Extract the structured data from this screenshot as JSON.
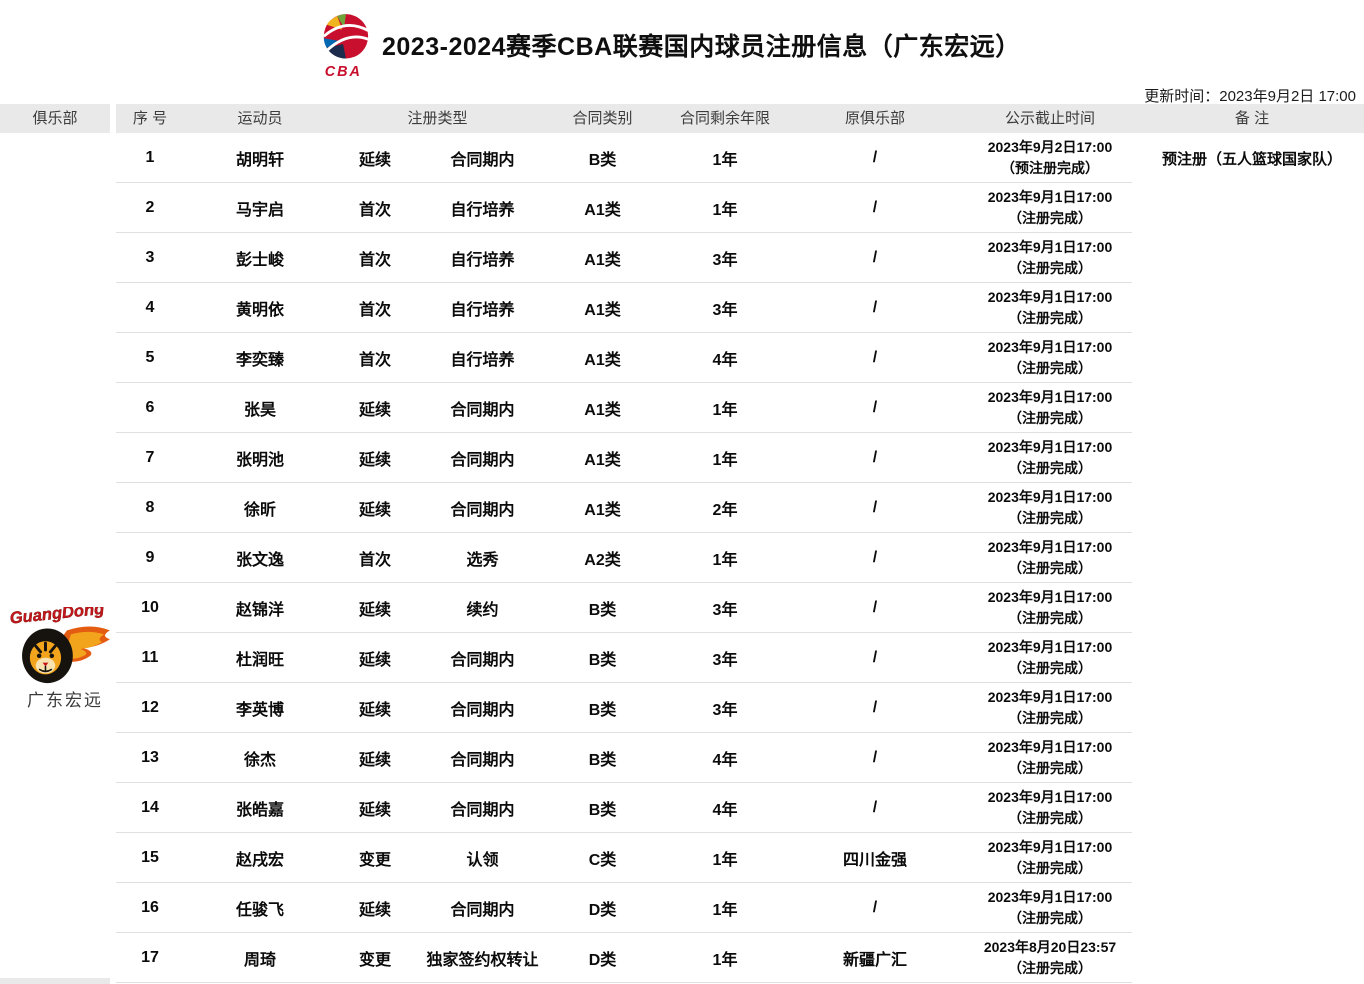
{
  "header": {
    "title": "2023-2024赛季CBA联赛国内球员注册信息（广东宏远）",
    "update_time": "更新时间：2023年9月2日 17:00",
    "cba_wordmark": "CBA"
  },
  "club": {
    "name": "广东宏远",
    "logo_wordmark": "GuangDong"
  },
  "table": {
    "headers": {
      "club": "俱乐部",
      "no": "序 号",
      "player": "运动员",
      "reg_type": "注册类型",
      "contract_class": "合同类别",
      "years_left": "合同剩余年限",
      "former_club": "原俱乐部",
      "deadline": "公示截止时间",
      "remark": "备 注"
    },
    "rows": [
      {
        "no": "1",
        "player": "胡明轩",
        "reg_type_a": "延续",
        "reg_type_b": "合同期内",
        "contract_class": "B类",
        "years_left": "1年",
        "former_club": "/",
        "deadline_line1": "2023年9月2日17:00",
        "deadline_line2": "（预注册完成）",
        "remark": "预注册（五人篮球国家队）"
      },
      {
        "no": "2",
        "player": "马宇启",
        "reg_type_a": "首次",
        "reg_type_b": "自行培养",
        "contract_class": "A1类",
        "years_left": "1年",
        "former_club": "/",
        "deadline_line1": "2023年9月1日17:00",
        "deadline_line2": "（注册完成）",
        "remark": ""
      },
      {
        "no": "3",
        "player": "彭士峻",
        "reg_type_a": "首次",
        "reg_type_b": "自行培养",
        "contract_class": "A1类",
        "years_left": "3年",
        "former_club": "/",
        "deadline_line1": "2023年9月1日17:00",
        "deadline_line2": "（注册完成）",
        "remark": ""
      },
      {
        "no": "4",
        "player": "黄明依",
        "reg_type_a": "首次",
        "reg_type_b": "自行培养",
        "contract_class": "A1类",
        "years_left": "3年",
        "former_club": "/",
        "deadline_line1": "2023年9月1日17:00",
        "deadline_line2": "（注册完成）",
        "remark": ""
      },
      {
        "no": "5",
        "player": "李奕臻",
        "reg_type_a": "首次",
        "reg_type_b": "自行培养",
        "contract_class": "A1类",
        "years_left": "4年",
        "former_club": "/",
        "deadline_line1": "2023年9月1日17:00",
        "deadline_line2": "（注册完成）",
        "remark": ""
      },
      {
        "no": "6",
        "player": "张昊",
        "reg_type_a": "延续",
        "reg_type_b": "合同期内",
        "contract_class": "A1类",
        "years_left": "1年",
        "former_club": "/",
        "deadline_line1": "2023年9月1日17:00",
        "deadline_line2": "（注册完成）",
        "remark": ""
      },
      {
        "no": "7",
        "player": "张明池",
        "reg_type_a": "延续",
        "reg_type_b": "合同期内",
        "contract_class": "A1类",
        "years_left": "1年",
        "former_club": "/",
        "deadline_line1": "2023年9月1日17:00",
        "deadline_line2": "（注册完成）",
        "remark": ""
      },
      {
        "no": "8",
        "player": "徐昕",
        "reg_type_a": "延续",
        "reg_type_b": "合同期内",
        "contract_class": "A1类",
        "years_left": "2年",
        "former_club": "/",
        "deadline_line1": "2023年9月1日17:00",
        "deadline_line2": "（注册完成）",
        "remark": ""
      },
      {
        "no": "9",
        "player": "张文逸",
        "reg_type_a": "首次",
        "reg_type_b": "选秀",
        "contract_class": "A2类",
        "years_left": "1年",
        "former_club": "/",
        "deadline_line1": "2023年9月1日17:00",
        "deadline_line2": "（注册完成）",
        "remark": ""
      },
      {
        "no": "10",
        "player": "赵锦洋",
        "reg_type_a": "延续",
        "reg_type_b": "续约",
        "contract_class": "B类",
        "years_left": "3年",
        "former_club": "/",
        "deadline_line1": "2023年9月1日17:00",
        "deadline_line2": "（注册完成）",
        "remark": ""
      },
      {
        "no": "11",
        "player": "杜润旺",
        "reg_type_a": "延续",
        "reg_type_b": "合同期内",
        "contract_class": "B类",
        "years_left": "3年",
        "former_club": "/",
        "deadline_line1": "2023年9月1日17:00",
        "deadline_line2": "（注册完成）",
        "remark": ""
      },
      {
        "no": "12",
        "player": "李英博",
        "reg_type_a": "延续",
        "reg_type_b": "合同期内",
        "contract_class": "B类",
        "years_left": "3年",
        "former_club": "/",
        "deadline_line1": "2023年9月1日17:00",
        "deadline_line2": "（注册完成）",
        "remark": ""
      },
      {
        "no": "13",
        "player": "徐杰",
        "reg_type_a": "延续",
        "reg_type_b": "合同期内",
        "contract_class": "B类",
        "years_left": "4年",
        "former_club": "/",
        "deadline_line1": "2023年9月1日17:00",
        "deadline_line2": "（注册完成）",
        "remark": ""
      },
      {
        "no": "14",
        "player": "张皓嘉",
        "reg_type_a": "延续",
        "reg_type_b": "合同期内",
        "contract_class": "B类",
        "years_left": "4年",
        "former_club": "/",
        "deadline_line1": "2023年9月1日17:00",
        "deadline_line2": "（注册完成）",
        "remark": ""
      },
      {
        "no": "15",
        "player": "赵戌宏",
        "reg_type_a": "变更",
        "reg_type_b": "认领",
        "contract_class": "C类",
        "years_left": "1年",
        "former_club": "四川金强",
        "deadline_line1": "2023年9月1日17:00",
        "deadline_line2": "（注册完成）",
        "remark": ""
      },
      {
        "no": "16",
        "player": "任骏飞",
        "reg_type_a": "延续",
        "reg_type_b": "合同期内",
        "contract_class": "D类",
        "years_left": "1年",
        "former_club": "/",
        "deadline_line1": "2023年9月1日17:00",
        "deadline_line2": "（注册完成）",
        "remark": ""
      },
      {
        "no": "17",
        "player": "周琦",
        "reg_type_a": "变更",
        "reg_type_b": "独家签约权转让",
        "contract_class": "D类",
        "years_left": "1年",
        "former_club": "新疆广汇",
        "deadline_line1": "2023年8月20日23:57",
        "deadline_line2": "（注册完成）",
        "remark": ""
      }
    ]
  },
  "icons": {
    "cba_logo": "cba-basketball-swoosh-logo",
    "club_logo": "guangdong-tiger-flame-logo"
  },
  "colors": {
    "header_bg": "#e9e9e9",
    "divider": "#e0e0e0",
    "cba_red": "#c8102e",
    "cba_navy": "#1d2b4d",
    "cba_blue": "#0067b1",
    "cba_yellow": "#f0b41e",
    "tiger_orange": "#f2a51c",
    "flame_orange": "#e45c12",
    "text": "#0b0b0b"
  }
}
